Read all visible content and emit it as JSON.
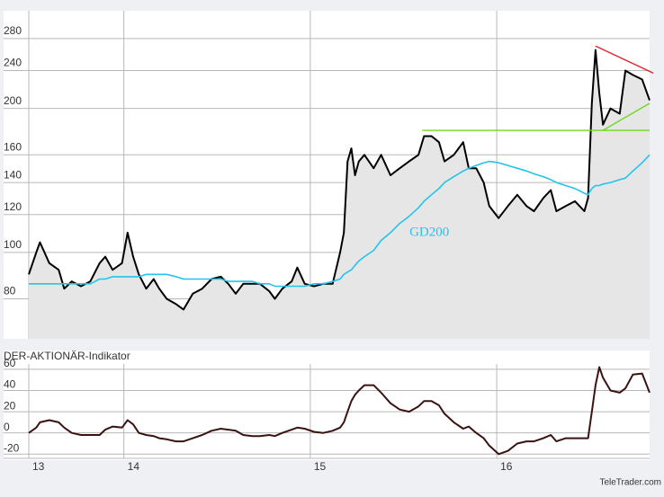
{
  "chart_data": [
    {
      "type": "line",
      "log_scale": true,
      "grid": true,
      "x": [
        2013.49,
        2013.53,
        2013.55,
        2013.6,
        2013.65,
        2013.68,
        2013.72,
        2013.77,
        2013.82,
        2013.87,
        2013.9,
        2013.94,
        2013.99,
        2014.02,
        2014.05,
        2014.08,
        2014.12,
        2014.16,
        2014.19,
        2014.23,
        2014.28,
        2014.32,
        2014.37,
        2014.42,
        2014.47,
        2014.52,
        2014.56,
        2014.6,
        2014.64,
        2014.69,
        2014.73,
        2014.78,
        2014.81,
        2014.85,
        2014.9,
        2014.93,
        2014.97,
        2015.02,
        2015.07,
        2015.12,
        2015.16,
        2015.18,
        2015.2,
        2015.22,
        2015.24,
        2015.26,
        2015.29,
        2015.34,
        2015.38,
        2015.43,
        2015.48,
        2015.53,
        2015.58,
        2015.61,
        2015.65,
        2015.69,
        2015.72,
        2015.77,
        2015.82,
        2015.85,
        2015.89,
        2015.93,
        2015.96,
        2016.01,
        2016.06,
        2016.11,
        2016.16,
        2016.2,
        2016.25,
        2016.29,
        2016.32,
        2016.37,
        2016.42,
        2016.47,
        2016.49,
        2016.51,
        2016.53,
        2016.55,
        2016.57,
        2016.61,
        2016.66,
        2016.69,
        2016.73,
        2016.78,
        2016.82
      ],
      "series": [
        {
          "color": "#000000",
          "values": [
            90,
            100,
            105,
            95,
            92,
            84,
            87,
            85,
            87,
            95,
            98,
            92,
            95,
            110,
            98,
            90,
            84,
            88,
            84,
            80,
            78,
            76,
            82,
            84,
            88,
            89,
            86,
            82,
            86,
            86,
            86,
            83,
            80,
            84,
            87,
            93,
            86,
            85,
            86,
            86,
            100,
            110,
            155,
            165,
            145,
            155,
            160,
            150,
            160,
            145,
            150,
            155,
            160,
            175,
            175,
            170,
            155,
            160,
            170,
            150,
            150,
            140,
            125,
            118,
            125,
            132,
            125,
            122,
            130,
            135,
            122,
            125,
            128,
            122,
            130,
            205,
            265,
            215,
            185,
            200,
            195,
            240,
            235,
            230,
            208
          ]
        },
        {
          "name": "GD200",
          "color": "#22c4ee",
          "values": [
            86,
            86,
            86,
            86,
            86,
            86,
            86,
            86,
            86,
            88,
            88,
            89,
            89,
            89,
            89,
            89,
            90,
            90,
            90,
            90,
            89,
            88,
            88,
            88,
            88,
            88,
            87,
            87,
            87,
            87,
            86,
            86,
            85,
            85,
            85,
            85,
            85,
            86,
            86,
            87,
            88,
            90,
            91,
            92,
            94,
            96,
            98,
            101,
            106,
            110,
            115,
            119,
            124,
            128,
            132,
            136,
            140,
            144,
            148,
            150,
            152,
            154,
            155,
            154,
            152,
            150,
            148,
            146,
            144,
            142,
            140,
            138,
            136,
            133,
            132,
            136,
            138,
            138,
            139,
            140,
            142,
            143,
            148,
            154,
            160
          ]
        }
      ],
      "trendlines": [
        {
          "color": "#e8202a",
          "x": [
            2016.53,
            2016.84
          ],
          "values": [
            270,
            237
          ]
        },
        {
          "color": "#6fd820",
          "x": [
            2015.6,
            2016.82
          ],
          "values": [
            180,
            180
          ]
        },
        {
          "color": "#6fd820",
          "x": [
            2016.57,
            2016.82
          ],
          "values": [
            180,
            205
          ]
        }
      ],
      "xlim": [
        2013.49,
        2016.82
      ],
      "ylim": [
        66,
        320
      ],
      "yticks": [
        80,
        100,
        120,
        140,
        160,
        200,
        240,
        280
      ]
    },
    {
      "type": "line",
      "title": "DER-AKTIONÄR-Indikator",
      "grid": true,
      "color": "#3a1212",
      "values": [
        0,
        5,
        10,
        12,
        10,
        5,
        0,
        -2,
        -2,
        -2,
        3,
        6,
        5,
        12,
        8,
        0,
        -2,
        -3,
        -5,
        -6,
        -8,
        -8,
        -5,
        -2,
        2,
        4,
        3,
        2,
        -2,
        -3,
        -3,
        -2,
        -3,
        0,
        3,
        5,
        4,
        1,
        0,
        2,
        5,
        10,
        20,
        30,
        36,
        40,
        45,
        45,
        38,
        28,
        22,
        20,
        25,
        30,
        30,
        26,
        18,
        10,
        4,
        6,
        0,
        -5,
        -12,
        -20,
        -17,
        -10,
        -8,
        -8,
        -5,
        -2,
        -8,
        -5,
        -5,
        -5,
        -5,
        20,
        45,
        62,
        52,
        40,
        38,
        42,
        55,
        56,
        38
      ],
      "xlim": [
        2013.49,
        2016.82
      ],
      "ylim": [
        -24,
        65
      ],
      "yticks": [
        60,
        40,
        20,
        0,
        -20
      ],
      "xticks": [
        {
          "value": 2013.49,
          "label": "13"
        },
        {
          "value": 2014,
          "label": "14"
        },
        {
          "value": 2015,
          "label": "15"
        },
        {
          "value": 2016,
          "label": "16"
        }
      ],
      "source": "TeleTrader.com"
    }
  ]
}
